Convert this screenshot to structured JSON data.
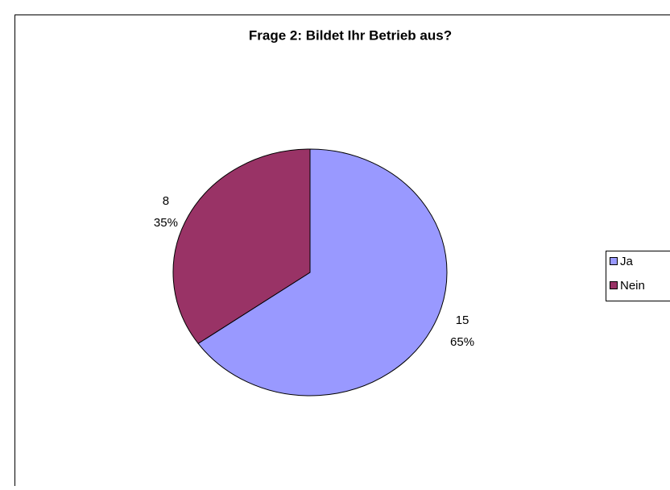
{
  "chart_data": {
    "type": "pie",
    "title": "Frage 2: Bildet Ihr Betrieb aus?",
    "categories": [
      "Ja",
      "Nein"
    ],
    "values": [
      15,
      8
    ],
    "percentages": [
      65,
      35
    ],
    "percentage_labels": [
      "65%",
      "35%"
    ],
    "colors": [
      "#9999ff",
      "#993366"
    ],
    "legend": "right"
  }
}
